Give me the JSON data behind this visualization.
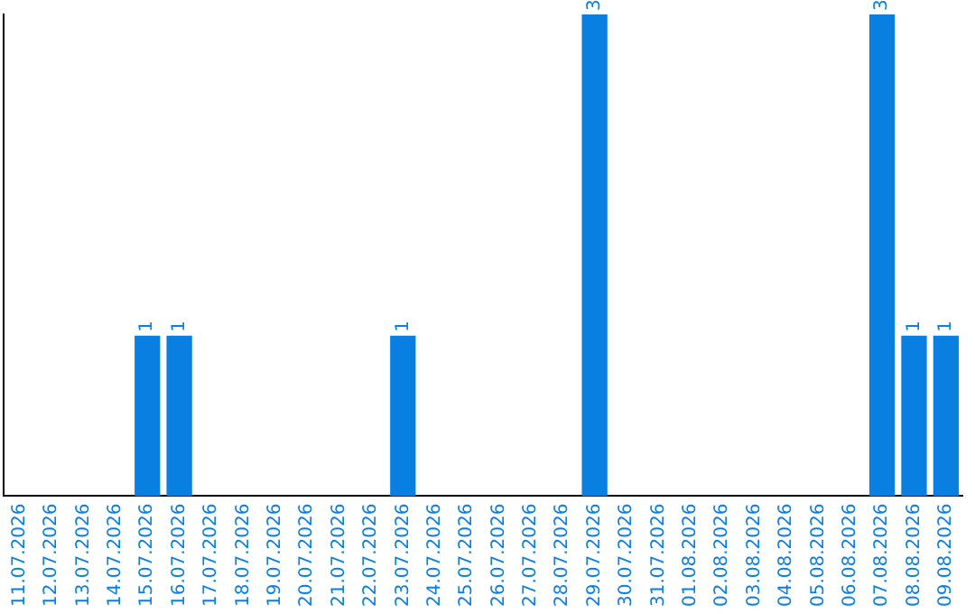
{
  "chart_data": {
    "type": "bar",
    "categories": [
      "11.07.2026",
      "12.07.2026",
      "13.07.2026",
      "14.07.2026",
      "15.07.2026",
      "16.07.2026",
      "17.07.2026",
      "18.07.2026",
      "19.07.2026",
      "20.07.2026",
      "21.07.2026",
      "22.07.2026",
      "23.07.2026",
      "24.07.2026",
      "25.07.2026",
      "26.07.2026",
      "27.07.2026",
      "28.07.2026",
      "29.07.2026",
      "30.07.2026",
      "31.07.2026",
      "01.08.2026",
      "02.08.2026",
      "03.08.2026",
      "04.08.2026",
      "05.08.2026",
      "06.08.2026",
      "07.08.2026",
      "08.08.2026",
      "09.08.2026"
    ],
    "values": [
      0,
      0,
      0,
      0,
      1,
      1,
      0,
      0,
      0,
      0,
      0,
      0,
      1,
      0,
      0,
      0,
      0,
      0,
      3,
      0,
      0,
      0,
      0,
      0,
      0,
      0,
      0,
      3,
      1,
      1
    ],
    "value_labels": [
      null,
      null,
      null,
      null,
      "1",
      "1",
      null,
      null,
      null,
      null,
      null,
      null,
      "1",
      null,
      null,
      null,
      null,
      null,
      "3",
      null,
      null,
      null,
      null,
      null,
      null,
      null,
      null,
      "3",
      "1",
      "1"
    ],
    "color": "#0a7fe2",
    "grid": false,
    "legend": false,
    "tick_labels": "x"
  }
}
